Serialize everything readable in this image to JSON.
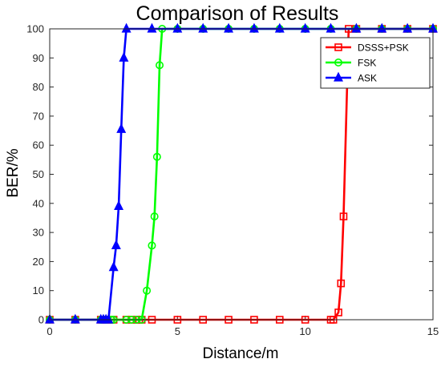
{
  "chart_data": {
    "type": "line",
    "title": "Comparison of Results",
    "xlabel": "Distance/m",
    "ylabel": "BER/%",
    "xlim": [
      0,
      15
    ],
    "ylim": [
      0,
      100
    ],
    "xticks": [
      0,
      5,
      10,
      15
    ],
    "yticks": [
      0,
      10,
      20,
      30,
      40,
      50,
      60,
      70,
      80,
      90,
      100
    ],
    "grid": false,
    "legend_position": "top-right",
    "series": [
      {
        "name": "DSSS+PSK",
        "color": "#ff0000",
        "marker": "square",
        "x": [
          0,
          1,
          2,
          2.2,
          2.4,
          2.5,
          3,
          3.2,
          3.4,
          3.5,
          3.6,
          4,
          5,
          6,
          7,
          8,
          9,
          10,
          11,
          11.1,
          11.3,
          11.4,
          11.5,
          11.7,
          12,
          13,
          14,
          15
        ],
        "y": [
          0,
          0,
          0,
          0,
          0,
          0,
          0,
          0,
          0,
          0,
          0,
          0,
          0,
          0,
          0,
          0,
          0,
          0,
          0,
          0,
          2.5,
          12.5,
          35.5,
          100,
          100,
          100,
          100,
          100
        ]
      },
      {
        "name": "FSK",
        "color": "#00ff00",
        "marker": "circle",
        "x": [
          0,
          1,
          2,
          2.2,
          2.4,
          2.5,
          3,
          3.2,
          3.4,
          3.6,
          3.8,
          4,
          4.1,
          4.2,
          4.3,
          4.4,
          5,
          6,
          7,
          8,
          9,
          10,
          11,
          12,
          13,
          14,
          15
        ],
        "y": [
          0,
          0,
          0,
          0,
          0,
          0,
          0,
          0,
          0,
          0,
          10,
          25.5,
          35.5,
          56,
          87.5,
          100,
          100,
          100,
          100,
          100,
          100,
          100,
          100,
          100,
          100,
          100,
          100
        ]
      },
      {
        "name": "ASK",
        "color": "#0000ff",
        "marker": "triangle",
        "x": [
          0,
          1,
          2,
          2.1,
          2.2,
          2.3,
          2.5,
          2.6,
          2.7,
          2.8,
          2.9,
          3,
          4,
          5,
          6,
          7,
          8,
          9,
          10,
          11,
          12,
          13,
          14,
          15
        ],
        "y": [
          0,
          0,
          0,
          0,
          0,
          0,
          18,
          25.5,
          39,
          65.5,
          90,
          100,
          100,
          100,
          100,
          100,
          100,
          100,
          100,
          100,
          100,
          100,
          100,
          100
        ]
      }
    ]
  }
}
